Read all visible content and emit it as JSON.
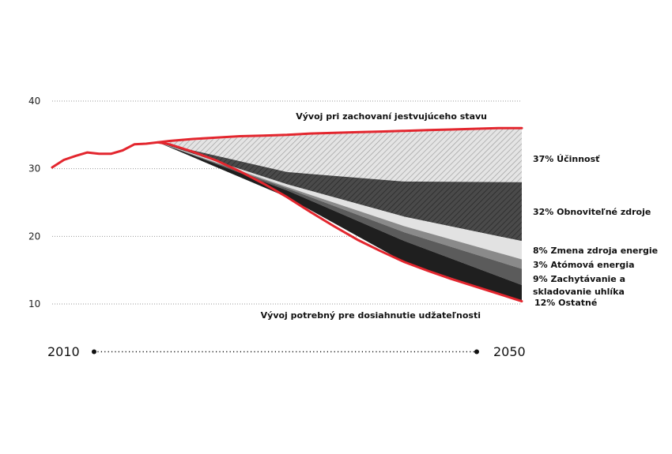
{
  "chart_data": {
    "type": "area",
    "title": "",
    "xlabel": "",
    "ylabel": "",
    "xlim": [
      2010,
      2050
    ],
    "ylim": [
      10,
      40
    ],
    "y_ticks": [
      10,
      20,
      30,
      40
    ],
    "grid": "dotted horizontal",
    "timeline": {
      "start_label": "2010",
      "end_label": "2050"
    },
    "lines": [
      {
        "name": "Vývoj pri zachovaní jestvujúceho stavu",
        "color": "#e3262e",
        "x": [
          2010,
          2011,
          2012,
          2013,
          2014,
          2015,
          2016,
          2017,
          2018,
          2019,
          2020,
          2022,
          2024,
          2026,
          2028,
          2030,
          2032,
          2034,
          2036,
          2038,
          2040,
          2042,
          2044,
          2046,
          2048,
          2050
        ],
        "y": [
          30.2,
          31.3,
          31.9,
          32.4,
          32.2,
          32.2,
          32.7,
          33.6,
          33.7,
          33.9,
          34.1,
          34.4,
          34.6,
          34.8,
          34.9,
          35.0,
          35.2,
          35.3,
          35.4,
          35.5,
          35.6,
          35.7,
          35.8,
          35.9,
          36.0,
          36.0
        ]
      },
      {
        "name": "Vývoj potrebný pre dosiahnutie udžateľnosti",
        "color": "#e3262e",
        "x": [
          2019,
          2020,
          2022,
          2024,
          2026,
          2028,
          2030,
          2032,
          2034,
          2036,
          2038,
          2040,
          2042,
          2044,
          2046,
          2048,
          2050
        ],
        "y": [
          33.9,
          33.6,
          32.5,
          31.2,
          29.6,
          27.8,
          25.8,
          23.6,
          21.5,
          19.5,
          17.8,
          16.2,
          14.9,
          13.7,
          12.6,
          11.5,
          10.4
        ]
      }
    ],
    "wedges": [
      {
        "label": "37% Účinnosť",
        "pattern": "hatch-light",
        "x": [
          2019,
          2030,
          2040,
          2050
        ],
        "lower": [
          33.9,
          29.5,
          28.1,
          28.0
        ],
        "upper": [
          33.9,
          35.0,
          35.6,
          36.0
        ]
      },
      {
        "label": "32% Obnoviteľné zdroje",
        "pattern": "hatch-dark",
        "x": [
          2019,
          2030,
          2040,
          2050
        ],
        "lower": [
          33.9,
          27.7,
          22.9,
          19.3
        ],
        "upper": [
          33.9,
          29.5,
          28.1,
          28.0
        ]
      },
      {
        "label": "8% Zmena zdroja energie",
        "pattern": "light-gray",
        "x": [
          2019,
          2030,
          2040,
          2050
        ],
        "lower": [
          33.9,
          27.3,
          21.5,
          16.6
        ],
        "upper": [
          33.9,
          27.7,
          22.9,
          19.3
        ]
      },
      {
        "label": "3% Atómová energia",
        "pattern": "mid-gray",
        "x": [
          2019,
          2030,
          2040,
          2050
        ],
        "lower": [
          33.9,
          27.1,
          20.6,
          15.2
        ],
        "upper": [
          33.9,
          27.3,
          21.5,
          16.6
        ]
      },
      {
        "label": "9% Zachytávanie a skladovanie uhlíka",
        "pattern": "dark-gray",
        "x": [
          2019,
          2030,
          2040,
          2050
        ],
        "lower": [
          33.9,
          26.8,
          19.3,
          12.8
        ],
        "upper": [
          33.9,
          27.1,
          20.6,
          15.2
        ]
      },
      {
        "label": "12% Ostatné",
        "pattern": "black",
        "x": [
          2019,
          2030,
          2040,
          2050
        ],
        "lower": [
          33.9,
          25.8,
          16.2,
          10.4
        ],
        "upper": [
          33.9,
          26.8,
          19.3,
          12.8
        ]
      }
    ],
    "annotations": {
      "top_line": "Vývoj pri zachovaní jestvujúceho stavu",
      "bottom_line": "Vývoj potrebný pre dosiahnutie udžateľnosti",
      "wedge_labels": [
        {
          "lines": [
            "37% Účinnosť"
          ]
        },
        {
          "lines": [
            "32% Obnoviteľné zdroje"
          ]
        },
        {
          "lines": [
            "8% Zmena zdroja energie"
          ]
        },
        {
          "lines": [
            "3% Atómová energia"
          ]
        },
        {
          "lines": [
            "9% Zachytávanie a",
            "skladovanie uhlíka"
          ]
        },
        {
          "lines": [
            "12% Ostatné"
          ]
        }
      ]
    },
    "colors": {
      "line": "#e3262e",
      "hatch_light_bg": "#e4e4e4",
      "hatch_dark_bg": "#4a4a4a",
      "light_gray": "#e2e2e2",
      "mid_gray": "#8a8a8a",
      "dark_gray": "#5b5b5b",
      "black": "#1f1f1f"
    }
  }
}
